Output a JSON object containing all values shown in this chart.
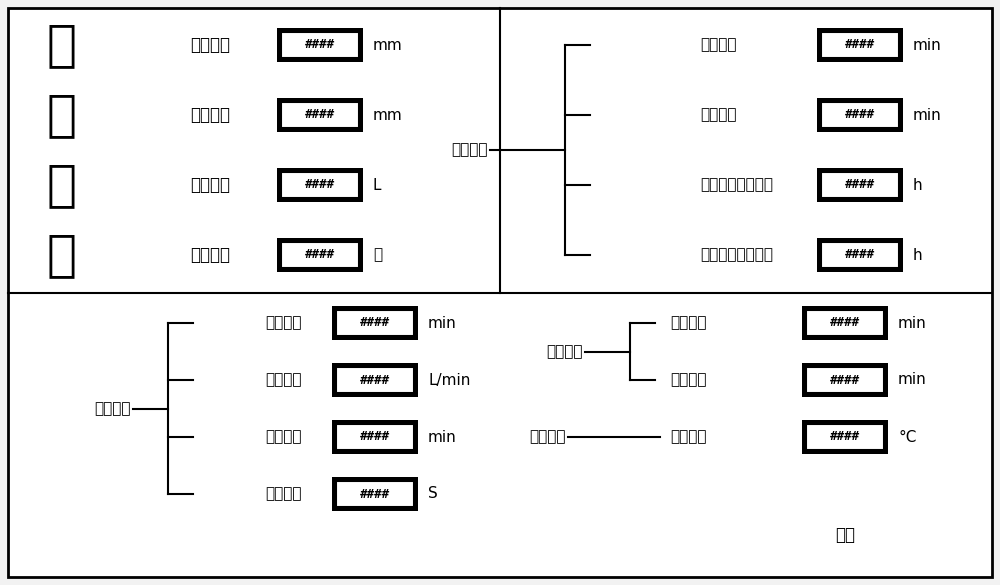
{
  "bg_color": "#f2f2f2",
  "title_chars": [
    "参",
    "数",
    "设",
    "定"
  ],
  "hash_text": "####",
  "top_left_params": [
    {
      "label": "最高潮位",
      "unit": "mm"
    },
    {
      "label": "最低潮位",
      "unit": "mm"
    },
    {
      "label": "物体体积",
      "unit": "L"
    },
    {
      "label": "循环次数",
      "unit": "次"
    }
  ],
  "top_right_group_label": "用户设定",
  "top_right_params": [
    {
      "label": "涨潮时间",
      "unit": "min"
    },
    {
      "label": "落潮时间",
      "unit": "min"
    },
    {
      "label": "最高潮位保持时间",
      "unit": "h"
    },
    {
      "label": "最低潮位保持时间",
      "unit": "h"
    }
  ],
  "bottom_left_group_label": "用户设定",
  "bottom_left_params": [
    {
      "label": "喷淋时间",
      "unit": "min"
    },
    {
      "label": "喷淋强度",
      "unit": "L/min"
    },
    {
      "label": "喷淋间隔",
      "unit": "min"
    },
    {
      "label": "抽水延迟",
      "unit": "S"
    }
  ],
  "bottom_right_group1_label": "用户设定",
  "bottom_right_params1": [
    {
      "label": "吹风时间",
      "unit": "min"
    },
    {
      "label": "吹风间隔",
      "unit": "min"
    }
  ],
  "bottom_right_group2_label": "用户设定",
  "bottom_right_param2": {
    "label": "水体温度",
    "unit": "°C"
  },
  "return_label": "返回"
}
